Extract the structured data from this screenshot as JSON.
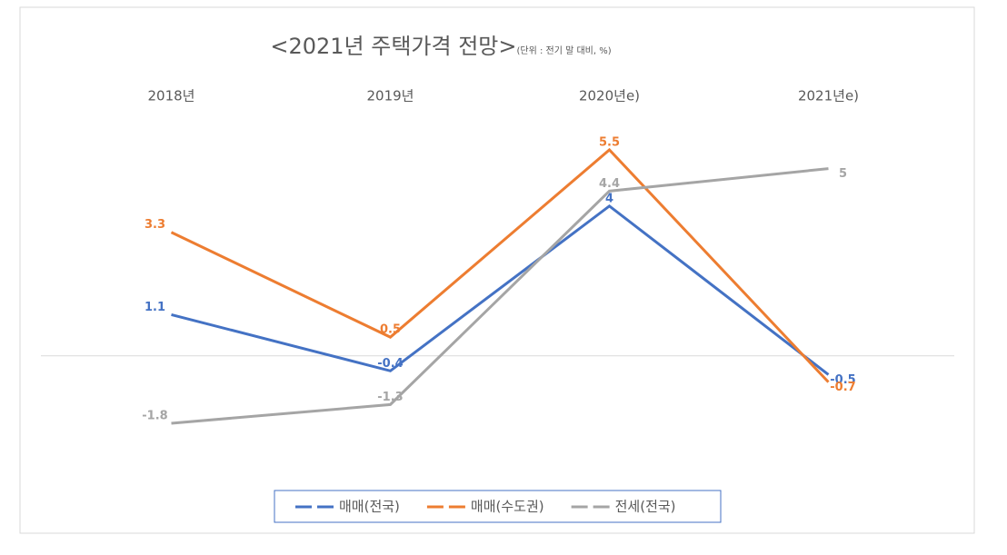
{
  "chart_data": {
    "type": "line",
    "title": "<2021년 주택가격 전망>",
    "subtitle": "(단위 : 전기 말 대비, %)",
    "categories": [
      "2018년",
      "2019년",
      "2020년e)",
      "2021년e)"
    ],
    "series": [
      {
        "name": "매매(전국)",
        "color": "#4472c4",
        "values": [
          1.1,
          -0.4,
          4,
          -0.5
        ]
      },
      {
        "name": "매매(수도권)",
        "color": "#ed7d31",
        "values": [
          3.3,
          0.5,
          5.5,
          -0.7
        ]
      },
      {
        "name": "전세(전국)",
        "color": "#a5a5a5",
        "values": [
          -1.8,
          -1.3,
          4.4,
          5
        ]
      }
    ]
  }
}
